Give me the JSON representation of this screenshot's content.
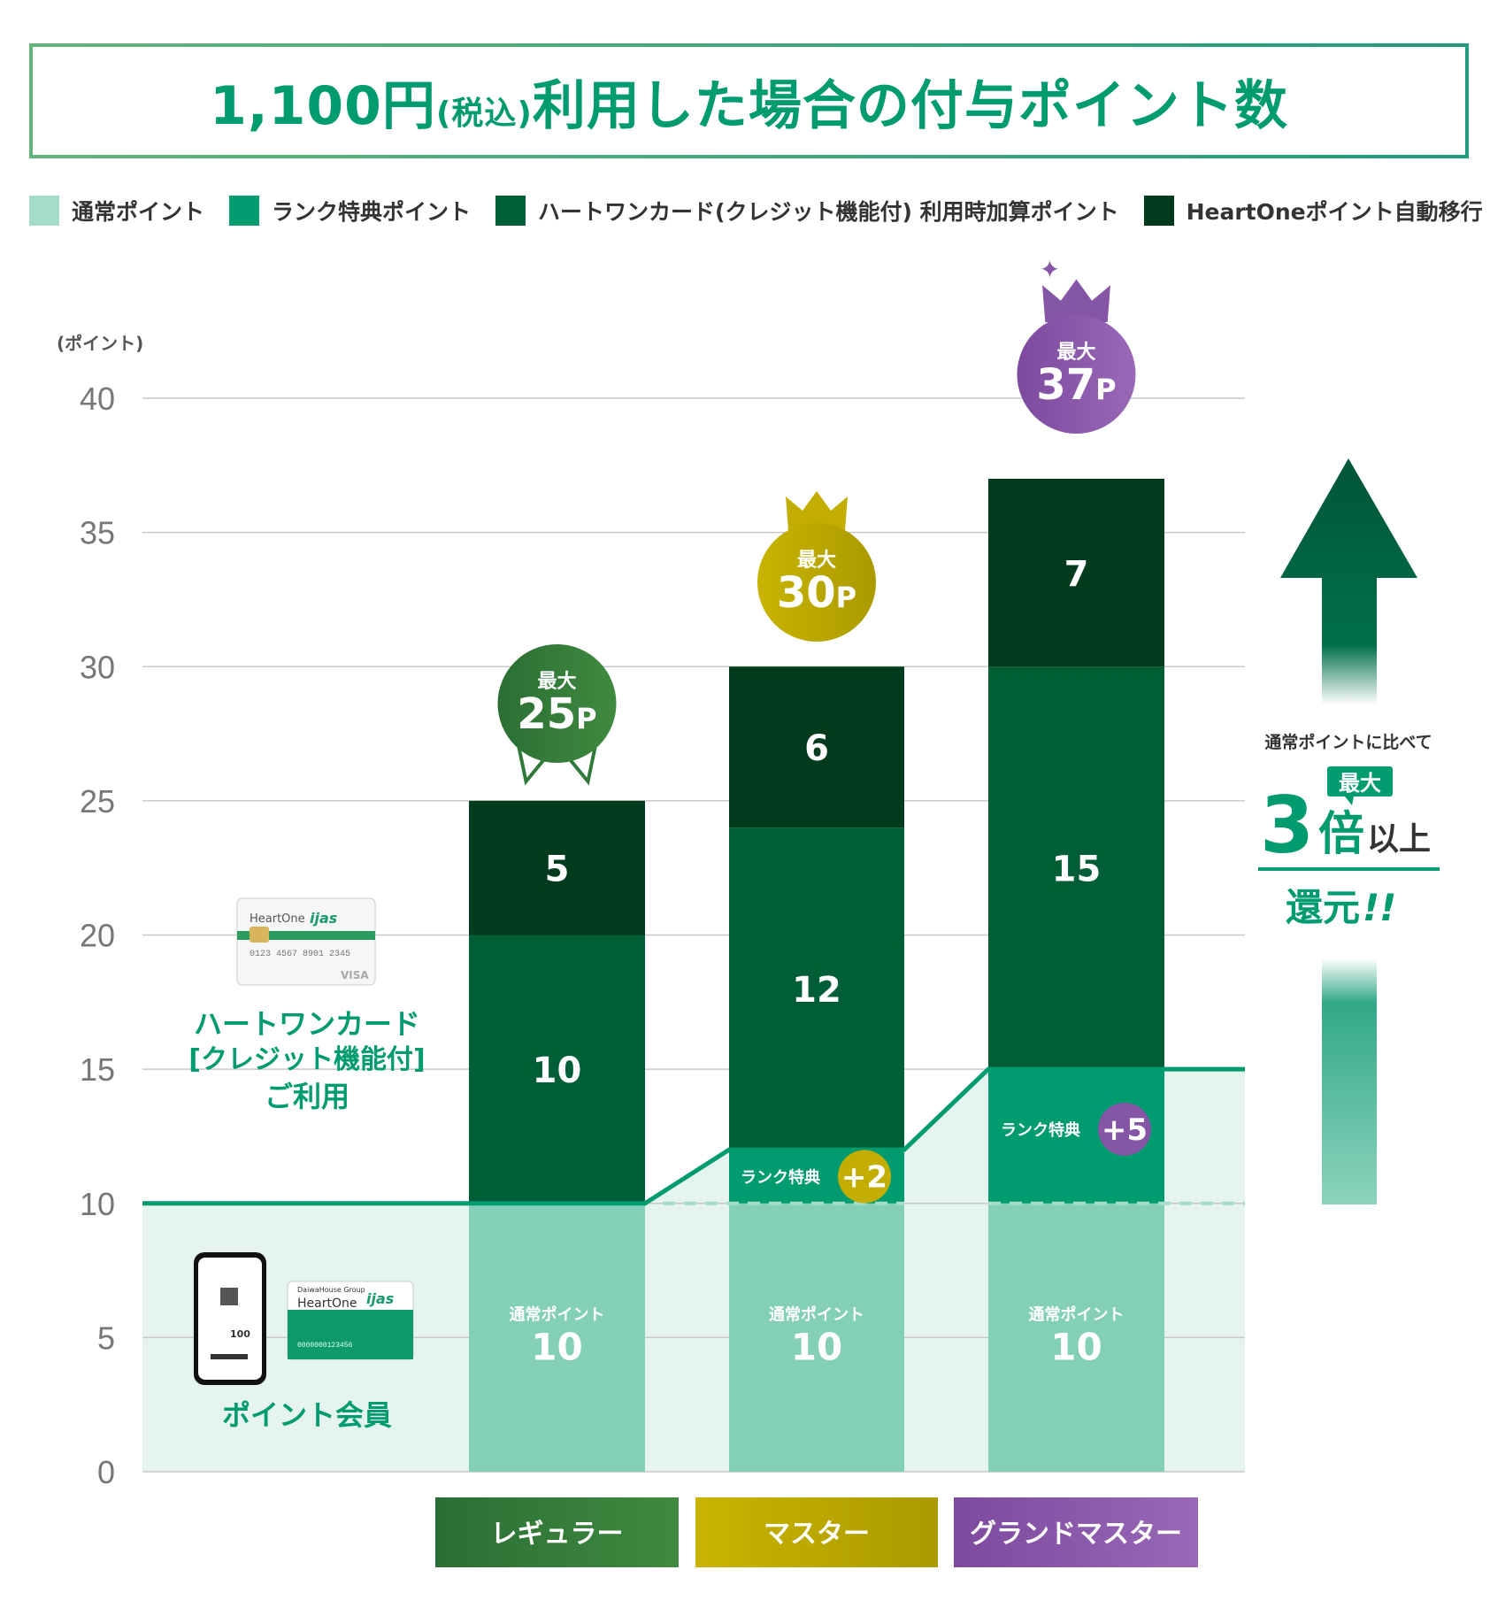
{
  "title": {
    "main_prefix": "1,100円",
    "tax": "(税込)",
    "main_suffix": "利用した場合の付与ポイント数"
  },
  "colors": {
    "normal": "#84cfb7",
    "rank": "#009b6e",
    "credit": "#005e36",
    "heartone": "#003b1e",
    "area": "#e5f4ef",
    "regular": "#2f7a3a",
    "master": "#c2ad00",
    "grand": "#8556a6"
  },
  "chart_data": {
    "type": "bar",
    "stacked": true,
    "ylabel": "(ポイント)",
    "ylim": [
      0,
      40
    ],
    "yticks": [
      0,
      5,
      10,
      15,
      20,
      25,
      30,
      35,
      40
    ],
    "grid": true,
    "legend_placement": "top",
    "legend": [
      "通常ポイント",
      "ランク特典ポイント",
      "ハートワンカード(クレジット機能付) 利用時加算ポイント",
      "HeartOneポイント自動移行"
    ],
    "categories": [
      "レギュラー",
      "マスター",
      "グランドマスター"
    ],
    "series": [
      {
        "name": "通常ポイント",
        "key": "normal",
        "values": [
          10,
          10,
          10
        ]
      },
      {
        "name": "ランク特典ポイント",
        "key": "rank",
        "values": [
          0,
          2,
          5
        ]
      },
      {
        "name": "ハートワンカード(クレジット機能付) 利用時加算ポイント",
        "key": "credit",
        "values": [
          10,
          12,
          15
        ]
      },
      {
        "name": "HeartOneポイント自動移行",
        "key": "heartone",
        "values": [
          5,
          6,
          7
        ]
      }
    ],
    "segment_labels": {
      "normal": "通常ポイント",
      "rank": "ランク特典"
    },
    "rank_bonus_labels": [
      "",
      "+2",
      "+5"
    ],
    "totals": [
      {
        "prefix": "最大",
        "value": "25",
        "unit": "P"
      },
      {
        "prefix": "最大",
        "value": "30",
        "unit": "P"
      },
      {
        "prefix": "最大",
        "value": "37",
        "unit": "P"
      }
    ],
    "baseline_step": [
      10,
      12,
      15
    ]
  },
  "left_labels": {
    "card_user": [
      "ハートワンカード",
      "[クレジット機能付]",
      "ご利用"
    ],
    "point_member": "ポイント会員"
  },
  "card_logo": {
    "brand": "HeartOne",
    "sub": "ijas",
    "group": "DaiwaHouse Group"
  },
  "phone_value": "100",
  "callout": {
    "compare": "通常ポイントに比べて",
    "max": "最大",
    "big": "3",
    "times": "倍",
    "more": "以上",
    "return": "還元",
    "exclaim": "!!"
  }
}
